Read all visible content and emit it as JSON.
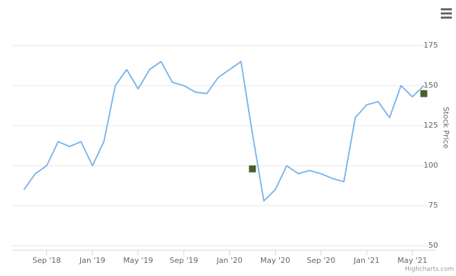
{
  "chart_data": {
    "type": "line",
    "y_axis_label": "Stock Price",
    "credits": "Highcharts.com",
    "x": [
      "2018-07",
      "2018-08",
      "2018-09",
      "2018-10",
      "2018-11",
      "2018-12",
      "2019-01",
      "2019-02",
      "2019-03",
      "2019-04",
      "2019-05",
      "2019-06",
      "2019-07",
      "2019-08",
      "2019-09",
      "2019-10",
      "2019-11",
      "2019-12",
      "2020-01",
      "2020-02",
      "2020-03",
      "2020-04",
      "2020-05",
      "2020-06",
      "2020-07",
      "2020-08",
      "2020-09",
      "2020-10",
      "2020-11",
      "2020-12",
      "2021-01",
      "2021-02",
      "2021-03",
      "2021-04",
      "2021-05",
      "2021-06"
    ],
    "series": [
      {
        "color": "#7cb5ec",
        "values": [
          85,
          95,
          100,
          115,
          112,
          115,
          100,
          115,
          150,
          160,
          148,
          160,
          165,
          152,
          150,
          146,
          145,
          155,
          160,
          165,
          120,
          78,
          85,
          100,
          95,
          97,
          95,
          92,
          90,
          130,
          138,
          140,
          130,
          150,
          143,
          150
        ]
      }
    ],
    "markers": {
      "color": "#4b5e2a",
      "x": [
        "2020-03",
        "2021-06"
      ],
      "values": [
        98,
        145
      ]
    },
    "xlim": [
      "2018-06",
      "2021-07"
    ],
    "xticks": [
      {
        "value": "2018-09",
        "label": "Sep '18"
      },
      {
        "value": "2019-01",
        "label": "Jan '19"
      },
      {
        "value": "2019-05",
        "label": "May '19"
      },
      {
        "value": "2019-09",
        "label": "Sep '19"
      },
      {
        "value": "2020-01",
        "label": "Jan '20"
      },
      {
        "value": "2020-05",
        "label": "May '20"
      },
      {
        "value": "2020-09",
        "label": "Sep '20"
      },
      {
        "value": "2021-01",
        "label": "Jan '21"
      },
      {
        "value": "2021-05",
        "label": "May '21"
      }
    ],
    "ylim": [
      47.5,
      200
    ],
    "yticks": [
      50,
      75,
      100,
      125,
      150,
      175
    ],
    "grid": true
  }
}
